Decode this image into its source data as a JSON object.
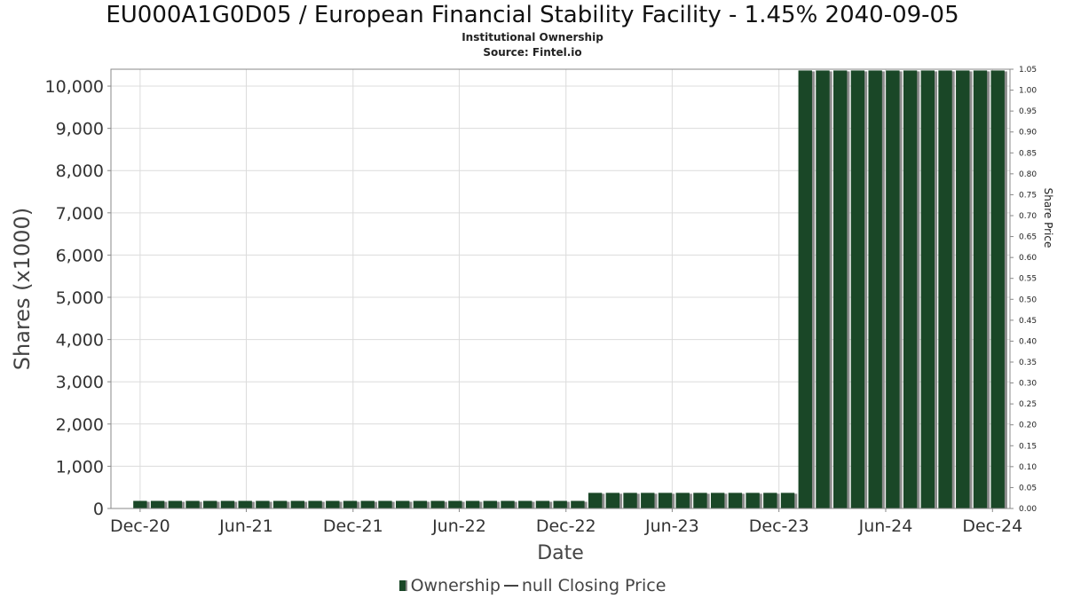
{
  "title": "EU000A1G0D05 / European Financial Stability Facility - 1.45% 2040-09-05",
  "subtitle": "Institutional Ownership",
  "source": "Source: Fintel.io",
  "legend": {
    "ownership": "Ownership",
    "price": "null Closing Price"
  },
  "colors": {
    "bar": "#1a4727",
    "bar_shadow": "#8c8c8c",
    "grid": "#dcdcdc",
    "axis": "#888888"
  },
  "chart_data": {
    "type": "bar",
    "xlabel": "Date",
    "ylabel": "Shares (x1000)",
    "y2label": "Share Price",
    "ylim": [
      0,
      10400
    ],
    "y2lim": [
      0,
      1.05
    ],
    "xlim": [
      "2020-10-12",
      "2024-12-31"
    ],
    "yticks": [
      "0",
      "1,000",
      "2,000",
      "3,000",
      "4,000",
      "5,000",
      "6,000",
      "7,000",
      "8,000",
      "9,000",
      "10,000"
    ],
    "y2ticks": [
      "0.00",
      "0.05",
      "0.10",
      "0.15",
      "0.20",
      "0.25",
      "0.30",
      "0.35",
      "0.40",
      "0.45",
      "0.50",
      "0.55",
      "0.60",
      "0.65",
      "0.70",
      "0.75",
      "0.80",
      "0.85",
      "0.90",
      "0.95",
      "1.00",
      "1.05"
    ],
    "xticks": [
      {
        "label": "Dec-20",
        "date": "2020-12-01"
      },
      {
        "label": "Jun-21",
        "date": "2021-06-01"
      },
      {
        "label": "Dec-21",
        "date": "2021-12-01"
      },
      {
        "label": "Jun-22",
        "date": "2022-06-01"
      },
      {
        "label": "Dec-22",
        "date": "2022-12-01"
      },
      {
        "label": "Jun-23",
        "date": "2023-06-01"
      },
      {
        "label": "Dec-23",
        "date": "2023-12-01"
      },
      {
        "label": "Jun-24",
        "date": "2024-06-01"
      },
      {
        "label": "Dec-24",
        "date": "2024-12-01"
      }
    ],
    "series": [
      {
        "name": "Ownership",
        "dates": [
          "2020-12-01",
          "2020-12-31",
          "2021-01-30",
          "2021-03-01",
          "2021-03-31",
          "2021-04-30",
          "2021-05-30",
          "2021-06-29",
          "2021-07-29",
          "2021-08-28",
          "2021-09-27",
          "2021-10-27",
          "2021-11-26",
          "2021-12-26",
          "2022-01-25",
          "2022-02-24",
          "2022-03-26",
          "2022-04-25",
          "2022-05-25",
          "2022-06-24",
          "2022-07-24",
          "2022-08-23",
          "2022-09-22",
          "2022-10-22",
          "2022-11-21",
          "2022-12-21",
          "2023-01-20",
          "2023-02-19",
          "2023-03-21",
          "2023-04-20",
          "2023-05-20",
          "2023-06-19",
          "2023-07-19",
          "2023-08-18",
          "2023-09-17",
          "2023-10-17",
          "2023-11-16",
          "2023-12-16",
          "2024-01-15",
          "2024-02-14",
          "2024-03-15",
          "2024-04-14",
          "2024-05-14",
          "2024-06-13",
          "2024-07-13",
          "2024-08-12",
          "2024-09-11",
          "2024-10-11",
          "2024-11-10",
          "2024-12-10"
        ],
        "values": [
          180,
          180,
          180,
          180,
          180,
          180,
          180,
          180,
          180,
          180,
          180,
          180,
          180,
          180,
          180,
          180,
          180,
          180,
          180,
          180,
          180,
          180,
          180,
          180,
          180,
          180,
          370,
          370,
          370,
          370,
          370,
          370,
          370,
          370,
          370,
          370,
          370,
          370,
          10370,
          10370,
          10370,
          10370,
          10370,
          10370,
          10370,
          10370,
          10370,
          10370,
          10370,
          10370
        ]
      }
    ]
  }
}
